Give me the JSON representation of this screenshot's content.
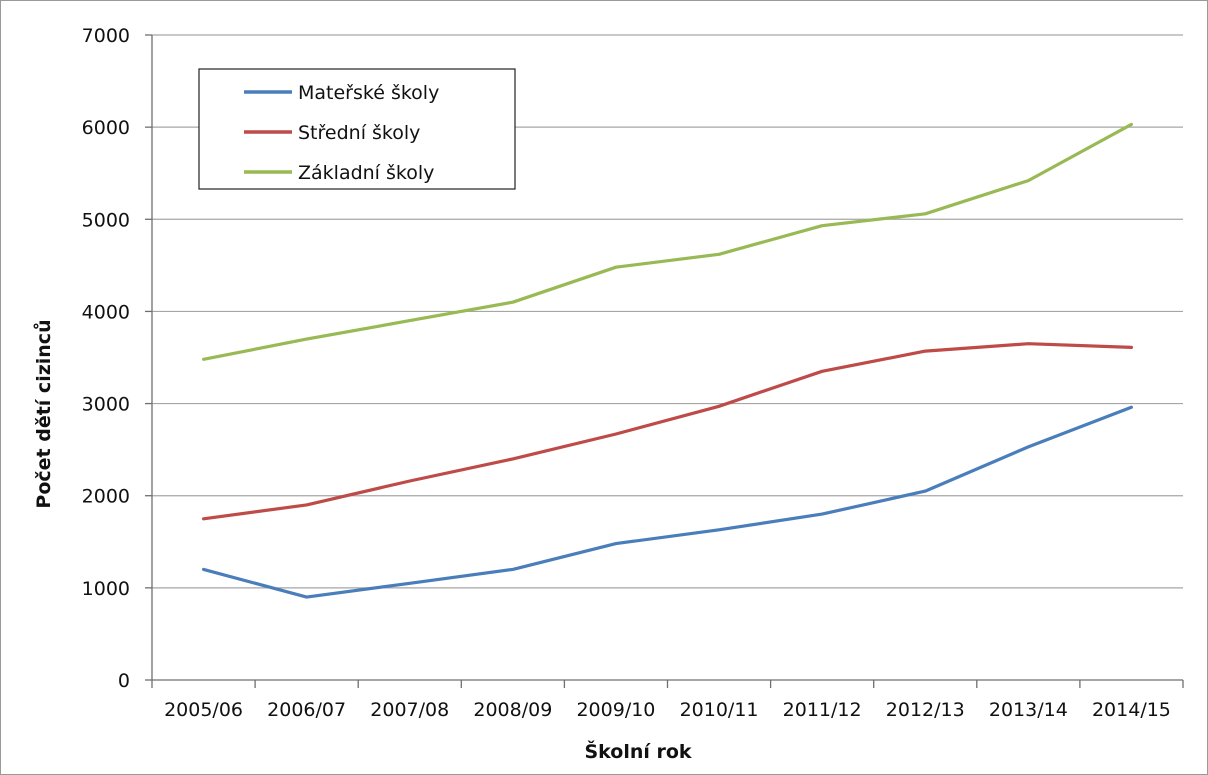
{
  "chart_data": {
    "type": "line",
    "title": "",
    "xlabel": "Školní rok",
    "ylabel": "Počet dětí cizinců",
    "categories": [
      "2005/06",
      "2006/07",
      "2007/08",
      "2008/09",
      "2009/10",
      "2010/11",
      "2011/12",
      "2012/13",
      "2013/14",
      "2014/15"
    ],
    "ylim": [
      0,
      7000
    ],
    "yticks": [
      0,
      1000,
      2000,
      3000,
      4000,
      5000,
      6000,
      7000
    ],
    "grid": true,
    "legend_position": "top-left",
    "series": [
      {
        "name": "Mateřské školy",
        "color": "#4a7ebb",
        "values": [
          1200,
          900,
          1050,
          1200,
          1480,
          1630,
          1800,
          2050,
          2530,
          2960
        ]
      },
      {
        "name": "Střední školy",
        "color": "#be4b48",
        "values": [
          1750,
          1900,
          2160,
          2400,
          2670,
          2970,
          3350,
          3570,
          3650,
          3610
        ]
      },
      {
        "name": "Základní školy",
        "color": "#98b954",
        "values": [
          3480,
          3700,
          3900,
          4100,
          4480,
          4620,
          4930,
          5060,
          5420,
          6030
        ]
      }
    ]
  }
}
